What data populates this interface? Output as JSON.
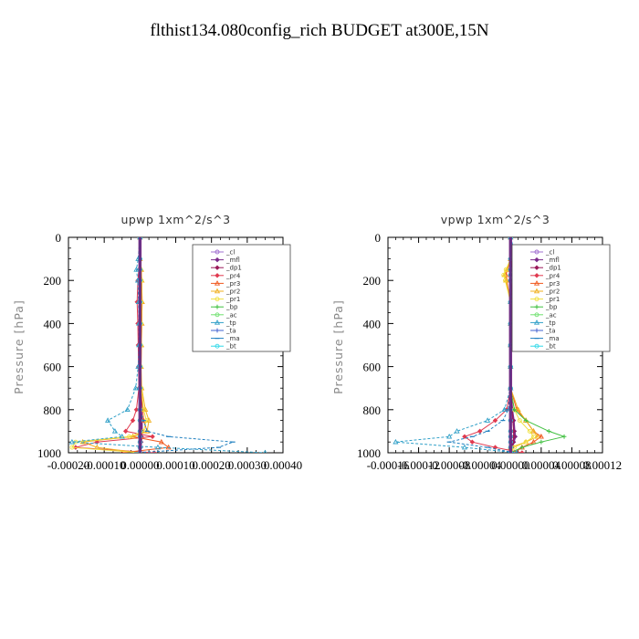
{
  "figure_title": "flthist134.080config_rich  BUDGET at300E,15N",
  "legend_entries": [
    {
      "name": "_cl",
      "color": "#a070d0"
    },
    {
      "name": "_mfl",
      "color": "#7a2a8a"
    },
    {
      "name": "_dp1",
      "color": "#9a1a5a"
    },
    {
      "name": "_pr4",
      "color": "#e03a50"
    },
    {
      "name": "_pr3",
      "color": "#f05a20"
    },
    {
      "name": "_pr2",
      "color": "#f0b020"
    },
    {
      "name": "_pr1",
      "color": "#f0e040"
    },
    {
      "name": "_bp",
      "color": "#40c040"
    },
    {
      "name": "_ac",
      "color": "#70e070"
    },
    {
      "name": "_tp",
      "color": "#30a0c8"
    },
    {
      "name": "_ta",
      "color": "#4060d0"
    },
    {
      "name": "_ma",
      "color": "#2080c0"
    },
    {
      "name": "_bt",
      "color": "#30d8e8"
    }
  ],
  "chart_data": [
    {
      "type": "line",
      "title": "upwp   1xm^2/s^3",
      "ylabel": "Pressure  [hPa]",
      "xlabel": "",
      "xlim": [
        -0.0002,
        0.0004
      ],
      "ylim": [
        1000,
        0
      ],
      "xticks": [
        "-0.00020",
        "-0.00010",
        "0.00000",
        "0.00010",
        "0.00020",
        "0.00030",
        "0.00040"
      ],
      "yticks": [
        "0",
        "200",
        "400",
        "600",
        "800",
        "1000"
      ],
      "pressure": [
        0,
        100,
        150,
        200,
        300,
        400,
        500,
        600,
        700,
        800,
        850,
        900,
        925,
        950,
        975,
        1000
      ],
      "series": [
        {
          "name": "_cl",
          "values": [
            0,
            0,
            0,
            0,
            0,
            0,
            0,
            0,
            0,
            0,
            0,
            0,
            0,
            0,
            0,
            0
          ]
        },
        {
          "name": "_mfl",
          "values": [
            0,
            0,
            0,
            0,
            0,
            0,
            0,
            0,
            2e-06,
            3e-06,
            5e-06,
            5e-06,
            4e-06,
            3e-06,
            2e-06,
            0
          ]
        },
        {
          "name": "_dp1",
          "values": [
            0,
            0,
            0,
            0,
            0,
            0,
            0,
            0,
            0,
            2e-06,
            3e-06,
            4e-06,
            3e-06,
            2e-06,
            0,
            0
          ]
        },
        {
          "name": "_pr4",
          "values": [
            0,
            0,
            -3e-06,
            -6e-06,
            -8e-06,
            -6e-06,
            -5e-06,
            -4e-06,
            -3e-06,
            -1e-05,
            -2e-05,
            -4e-05,
            3.5e-05,
            -0.00012,
            -0.00018,
            4e-05
          ]
        },
        {
          "name": "_pr3",
          "values": [
            0,
            0,
            3e-06,
            5e-06,
            6e-06,
            5e-06,
            4e-06,
            3e-06,
            3e-06,
            8e-06,
            1e-05,
            2e-05,
            -2e-05,
            6e-05,
            8e-05,
            -5e-05
          ]
        },
        {
          "name": "_pr2",
          "values": [
            0,
            0,
            4e-06,
            5e-06,
            6e-06,
            5e-06,
            4e-06,
            3e-06,
            5e-06,
            1.5e-05,
            2.5e-05,
            2e-05,
            -2e-05,
            -0.00016,
            -0.00012,
            0
          ]
        },
        {
          "name": "_pr1",
          "values": [
            0,
            0,
            2e-06,
            4e-06,
            3e-06,
            3e-06,
            2e-06,
            2e-06,
            4e-06,
            1e-05,
            1.8e-05,
            1e-05,
            -3e-05,
            -0.00018,
            -0.00019,
            0
          ]
        },
        {
          "name": "_bp",
          "values": [
            0,
            0,
            0,
            0,
            0,
            0,
            0,
            0,
            0,
            0,
            0,
            0,
            0,
            0,
            0,
            0
          ]
        },
        {
          "name": "_ac",
          "values": [
            0,
            0,
            0,
            0,
            0,
            0,
            0,
            0,
            0,
            0,
            0,
            0,
            0,
            0,
            0,
            0
          ]
        },
        {
          "name": "_tp",
          "values": [
            0,
            -5e-06,
            -1e-05,
            -6e-06,
            -4e-06,
            -3e-06,
            -3e-06,
            -5e-06,
            -1.2e-05,
            -3.5e-05,
            -9e-05,
            -7e-05,
            -5e-05,
            -0.00019,
            5e-05,
            0.00035
          ]
        },
        {
          "name": "_ta",
          "values": [
            0,
            0,
            0,
            0,
            0,
            0,
            0,
            0,
            0,
            0,
            0,
            0,
            0,
            0,
            0,
            0
          ]
        },
        {
          "name": "_ma",
          "values": [
            0,
            0,
            0,
            0,
            0,
            0,
            0,
            0,
            0,
            0,
            1e-05,
            2e-05,
            8e-05,
            0.00026,
            0.00022,
            -1e-05
          ]
        },
        {
          "name": "_bt",
          "values": [
            0,
            0,
            0,
            0,
            0,
            0,
            0,
            0,
            0,
            0,
            0,
            0,
            0,
            0,
            0,
            0
          ]
        }
      ]
    },
    {
      "type": "line",
      "title": "vpwp   1xm^2/s^3",
      "ylabel": "Pressure  [hPa]",
      "xlabel": "",
      "xlim": [
        -0.00016,
        0.00012
      ],
      "ylim": [
        1000,
        0
      ],
      "xticks": [
        "-0.00016",
        "-0.00012",
        "-0.00008",
        "-0.00004",
        "0.00000",
        "0.00004",
        "0.00008",
        "0.00012"
      ],
      "yticks": [
        "0",
        "200",
        "400",
        "600",
        "800",
        "1000"
      ],
      "pressure": [
        0,
        100,
        150,
        175,
        200,
        300,
        400,
        500,
        600,
        700,
        800,
        850,
        900,
        925,
        950,
        975,
        1000
      ],
      "series": [
        {
          "name": "_cl",
          "values": [
            0,
            0,
            0,
            0,
            0,
            0,
            0,
            0,
            0,
            0,
            0,
            0,
            0,
            0,
            0,
            0,
            0
          ]
        },
        {
          "name": "_mfl",
          "values": [
            0,
            0,
            3e-06,
            4e-06,
            3e-06,
            0,
            0,
            0,
            0,
            0,
            2e-06,
            4e-06,
            5e-06,
            6e-06,
            4e-06,
            2e-06,
            0
          ]
        },
        {
          "name": "_dp1",
          "values": [
            0,
            0,
            2e-06,
            3e-06,
            2e-06,
            0,
            0,
            0,
            0,
            0,
            2e-06,
            3e-06,
            4e-06,
            4e-06,
            3e-06,
            0,
            0
          ]
        },
        {
          "name": "_pr4",
          "values": [
            0,
            0,
            4e-06,
            5e-06,
            6e-06,
            0,
            0,
            0,
            0,
            0,
            -5e-06,
            -2e-05,
            -4e-05,
            -6e-05,
            -5e-05,
            -2e-05,
            1.5e-05
          ]
        },
        {
          "name": "_pr3",
          "values": [
            0,
            0,
            -4e-06,
            -6e-06,
            -5e-06,
            0,
            0,
            0,
            0,
            0,
            8e-06,
            2e-05,
            3e-05,
            4e-05,
            3e-05,
            1.5e-05,
            5e-06
          ]
        },
        {
          "name": "_pr2",
          "values": [
            0,
            0,
            -5e-06,
            -8e-06,
            -6e-06,
            0,
            0,
            0,
            0,
            0,
            1e-05,
            2e-05,
            3e-05,
            3.5e-05,
            2e-05,
            0,
            0
          ]
        },
        {
          "name": "_pr1",
          "values": [
            0,
            0,
            -6e-06,
            -9e-06,
            -7e-06,
            0,
            0,
            0,
            0,
            0,
            5e-06,
            1.2e-05,
            2.5e-05,
            3e-05,
            2e-05,
            5e-06,
            0
          ]
        },
        {
          "name": "_bp",
          "values": [
            0,
            0,
            0,
            0,
            0,
            0,
            0,
            0,
            0,
            0,
            5e-06,
            2e-05,
            5e-05,
            7e-05,
            4e-05,
            1.5e-05,
            0
          ]
        },
        {
          "name": "_ac",
          "values": [
            0,
            0,
            0,
            0,
            0,
            0,
            0,
            0,
            0,
            0,
            0,
            0,
            0,
            0,
            0,
            0,
            0
          ]
        },
        {
          "name": "_tp",
          "values": [
            0,
            8e-06,
            8e-06,
            6e-06,
            4e-06,
            0,
            0,
            0,
            0,
            0,
            -8e-06,
            -3e-05,
            -7e-05,
            -8e-05,
            -0.00015,
            -6e-05,
            8e-06
          ]
        },
        {
          "name": "_ta",
          "values": [
            0,
            0,
            0,
            0,
            0,
            0,
            0,
            0,
            0,
            0,
            0,
            0,
            0,
            0,
            0,
            0,
            0
          ]
        },
        {
          "name": "_ma",
          "values": [
            0,
            0,
            0,
            0,
            0,
            0,
            0,
            0,
            0,
            0,
            -3e-06,
            -1e-05,
            -3e-05,
            -5e-05,
            -8e-05,
            -3e-05,
            5e-06
          ]
        },
        {
          "name": "_bt",
          "values": [
            0,
            0,
            0,
            0,
            0,
            0,
            0,
            0,
            0,
            0,
            0,
            0,
            0,
            0,
            0,
            0,
            0
          ]
        }
      ]
    }
  ]
}
